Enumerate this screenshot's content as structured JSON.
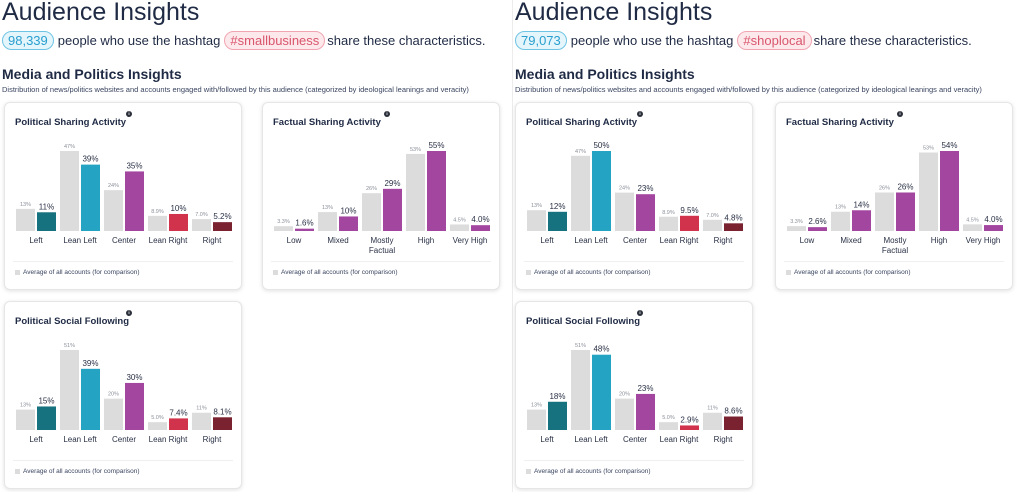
{
  "colors": {
    "comparison": "#dcdcdc",
    "left": "#17727f",
    "lean_left": "#24a3c3",
    "center": "#a346a0",
    "lean_right": "#d2334c",
    "right": "#7a2230",
    "factual": "#a346a0"
  },
  "panels": [
    {
      "title": "Audience Insights",
      "audience_count": "98,339",
      "text_before": "people who use the hashtag",
      "hashtag": "#smallbusiness",
      "text_after": "share these characteristics.",
      "section_title": "Media and Politics Insights",
      "section_desc": "Distribution of news/politics websites and accounts engaged with/followed by this audience (categorized by ideological leanings and veracity)",
      "legend": "Average of all accounts (for comparison)"
    },
    {
      "title": "Audience Insights",
      "audience_count": "79,073",
      "text_before": "people who use the hashtag",
      "hashtag": "#shoplocal",
      "text_after": "share these characteristics.",
      "section_title": "Media and Politics Insights",
      "section_desc": "Distribution of news/politics websites and accounts engaged with/followed by this audience (categorized by ideological leanings and veracity)",
      "legend": "Average of all accounts (for comparison)"
    }
  ],
  "chart_data": [
    {
      "type": "bar",
      "panel": 0,
      "title": "Political Sharing Activity",
      "kind": "political",
      "categories": [
        "Left",
        "Lean Left",
        "Center",
        "Lean Right",
        "Right"
      ],
      "series": [
        {
          "name": "Average of all accounts (for comparison)",
          "values": [
            13,
            47,
            24,
            8.9,
            7.0
          ],
          "labels": [
            "13%",
            "47%",
            "24%",
            "8.9%",
            "7.0%"
          ]
        },
        {
          "values": [
            11,
            39,
            35,
            10,
            5.2
          ],
          "labels": [
            "11%",
            "39%",
            "35%",
            "10%",
            "5.2%"
          ]
        }
      ]
    },
    {
      "type": "bar",
      "panel": 0,
      "title": "Factual Sharing Activity",
      "kind": "factual",
      "categories": [
        "Low",
        "Mixed",
        "Mostly Factual",
        "High",
        "Very High"
      ],
      "series": [
        {
          "name": "Average of all accounts (for comparison)",
          "values": [
            3.3,
            13,
            26,
            53,
            4.5
          ],
          "labels": [
            "3.3%",
            "13%",
            "26%",
            "53%",
            "4.5%"
          ]
        },
        {
          "values": [
            1.6,
            10,
            29,
            55,
            4.0
          ],
          "labels": [
            "1.6%",
            "10%",
            "29%",
            "55%",
            "4.0%"
          ]
        }
      ]
    },
    {
      "type": "bar",
      "panel": 0,
      "title": "Political Social Following",
      "kind": "political",
      "categories": [
        "Left",
        "Lean Left",
        "Center",
        "Lean Right",
        "Right"
      ],
      "series": [
        {
          "name": "Average of all accounts (for comparison)",
          "values": [
            13,
            51,
            20,
            5.0,
            11
          ],
          "labels": [
            "13%",
            "51%",
            "20%",
            "5.0%",
            "11%"
          ]
        },
        {
          "values": [
            15,
            39,
            30,
            7.4,
            8.1
          ],
          "labels": [
            "15%",
            "39%",
            "30%",
            "7.4%",
            "8.1%"
          ]
        }
      ]
    },
    {
      "type": "bar",
      "panel": 1,
      "title": "Political Sharing Activity",
      "kind": "political",
      "categories": [
        "Left",
        "Lean Left",
        "Center",
        "Lean Right",
        "Right"
      ],
      "series": [
        {
          "name": "Average of all accounts (for comparison)",
          "values": [
            13,
            47,
            24,
            8.9,
            7.0
          ],
          "labels": [
            "13%",
            "47%",
            "24%",
            "8.9%",
            "7.0%"
          ]
        },
        {
          "values": [
            12,
            50,
            23,
            9.5,
            4.8
          ],
          "labels": [
            "12%",
            "50%",
            "23%",
            "9.5%",
            "4.8%"
          ]
        }
      ]
    },
    {
      "type": "bar",
      "panel": 1,
      "title": "Factual Sharing Activity",
      "kind": "factual",
      "categories": [
        "Low",
        "Mixed",
        "Mostly Factual",
        "High",
        "Very High"
      ],
      "series": [
        {
          "name": "Average of all accounts (for comparison)",
          "values": [
            3.3,
            13,
            26,
            53,
            4.5
          ],
          "labels": [
            "3.3%",
            "13%",
            "26%",
            "53%",
            "4.5%"
          ]
        },
        {
          "values": [
            2.6,
            14,
            26,
            54,
            4.0
          ],
          "labels": [
            "2.6%",
            "14%",
            "26%",
            "54%",
            "4.0%"
          ]
        }
      ]
    },
    {
      "type": "bar",
      "panel": 1,
      "title": "Political Social Following",
      "kind": "political",
      "categories": [
        "Left",
        "Lean Left",
        "Center",
        "Lean Right",
        "Right"
      ],
      "series": [
        {
          "name": "Average of all accounts (for comparison)",
          "values": [
            13,
            51,
            20,
            5.0,
            11
          ],
          "labels": [
            "13%",
            "51%",
            "20%",
            "5.0%",
            "11%"
          ]
        },
        {
          "values": [
            18,
            48,
            23,
            2.9,
            8.6
          ],
          "labels": [
            "18%",
            "48%",
            "23%",
            "2.9%",
            "8.6%"
          ]
        }
      ]
    }
  ]
}
